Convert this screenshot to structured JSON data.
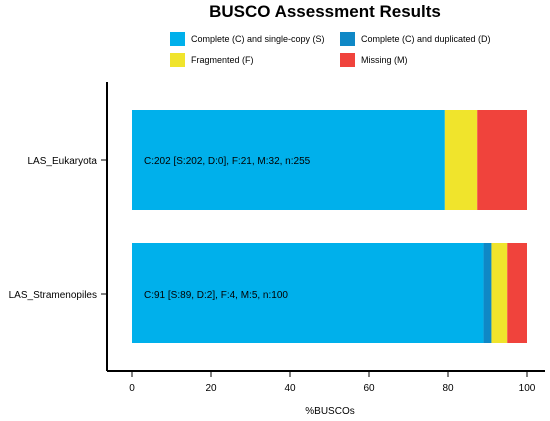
{
  "chart_data": {
    "type": "bar",
    "orientation": "horizontal",
    "stacked": true,
    "title": "BUSCO Assessment Results",
    "xlabel": "%BUSCOs",
    "ylabel": "",
    "xlim": [
      0,
      100
    ],
    "xticks": [
      "0",
      "20",
      "40",
      "60",
      "80",
      "100"
    ],
    "grid": false,
    "legend_position": "top",
    "categories": [
      "LAS_Eukaryota",
      "LAS_Stramenopiles"
    ],
    "series": [
      {
        "name": "Complete (C) and single-copy (S)",
        "color": "#00B0EB",
        "values": [
          79.2,
          89.0
        ]
      },
      {
        "name": "Complete (C) and duplicated (D)",
        "color": "#0F88C6",
        "values": [
          0.0,
          2.0
        ]
      },
      {
        "name": "Fragmented (F)",
        "color": "#F0E42C",
        "values": [
          8.2,
          4.0
        ]
      },
      {
        "name": "Missing (M)",
        "color": "#F0433C",
        "values": [
          12.6,
          5.0
        ]
      }
    ],
    "bar_labels": [
      "C:202 [S:202, D:0], F:21, M:32, n:255",
      "C:91 [S:89, D:2], F:4, M:5, n:100"
    ]
  }
}
